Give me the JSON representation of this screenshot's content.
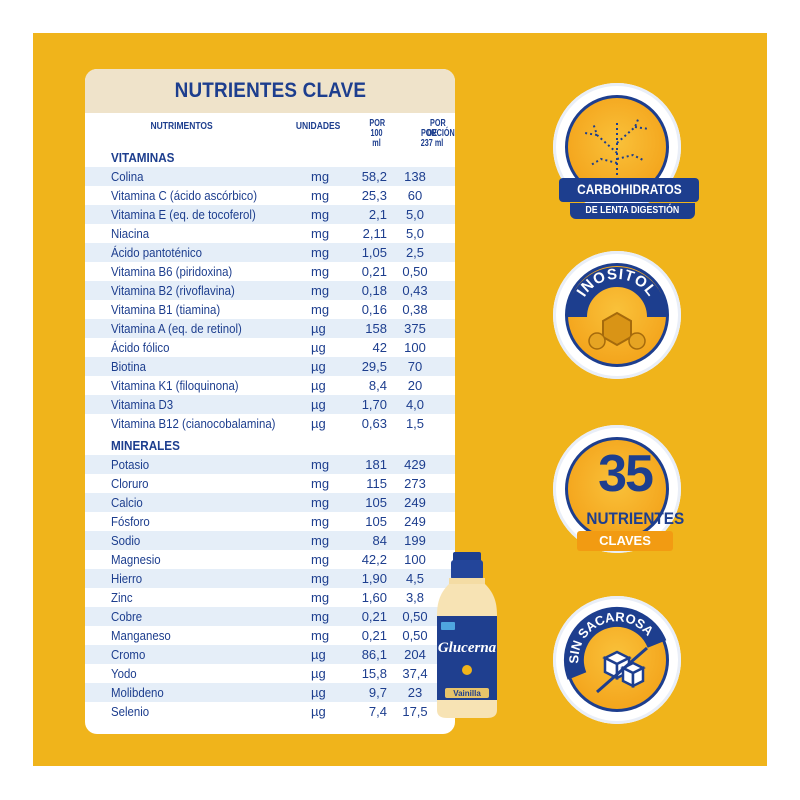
{
  "card": {
    "title": "NUTRIENTES CLAVE",
    "headers": {
      "nutrimentos": "NUTRIMENTOS",
      "unidades": "UNIDADES",
      "por100_line1": "POR",
      "por100_line2": "100 ml",
      "por237_line1": "POR PORCIÓN",
      "por237_line2": "DE 237 ml"
    },
    "vitaminas_label": "VITAMINAS",
    "vitaminas": [
      {
        "name": "Colina",
        "unit": "mg",
        "v100": "58,2",
        "v237": "138"
      },
      {
        "name": "Vitamina C (ácido ascórbico)",
        "unit": "mg",
        "v100": "25,3",
        "v237": "60"
      },
      {
        "name": "Vitamina E (eq. de tocoferol)",
        "unit": "mg",
        "v100": "2,1",
        "v237": "5,0"
      },
      {
        "name": "Niacina",
        "unit": "mg",
        "v100": "2,11",
        "v237": "5,0"
      },
      {
        "name": "Ácido pantoténico",
        "unit": "mg",
        "v100": "1,05",
        "v237": "2,5"
      },
      {
        "name": "Vitamina B6 (piridoxina)",
        "unit": "mg",
        "v100": "0,21",
        "v237": "0,50"
      },
      {
        "name": "Vitamina B2 (rivoflavina)",
        "unit": "mg",
        "v100": "0,18",
        "v237": "0,43"
      },
      {
        "name": "Vitamina B1 (tiamina)",
        "unit": "mg",
        "v100": "0,16",
        "v237": "0,38"
      },
      {
        "name": "Vitamina A (eq. de retinol)",
        "unit": "µg",
        "v100": "158",
        "v237": "375"
      },
      {
        "name": "Ácido fólico",
        "unit": "µg",
        "v100": "42",
        "v237": "100"
      },
      {
        "name": "Biotina",
        "unit": "µg",
        "v100": "29,5",
        "v237": "70"
      },
      {
        "name": "Vitamina K1 (filoquinona)",
        "unit": "µg",
        "v100": "8,4",
        "v237": "20"
      },
      {
        "name": "Vitamina D3",
        "unit": "µg",
        "v100": "1,70",
        "v237": "4,0"
      },
      {
        "name": "Vitamina B12 (cianocobalamina)",
        "unit": "µg",
        "v100": "0,63",
        "v237": "1,5"
      }
    ],
    "minerales_label": "MINERALES",
    "minerales": [
      {
        "name": "Potasio",
        "unit": "mg",
        "v100": "181",
        "v237": "429"
      },
      {
        "name": "Cloruro",
        "unit": "mg",
        "v100": "115",
        "v237": "273"
      },
      {
        "name": "Calcio",
        "unit": "mg",
        "v100": "105",
        "v237": "249"
      },
      {
        "name": "Fósforo",
        "unit": "mg",
        "v100": "105",
        "v237": "249"
      },
      {
        "name": "Sodio",
        "unit": "mg",
        "v100": "84",
        "v237": "199"
      },
      {
        "name": "Magnesio",
        "unit": "mg",
        "v100": "42,2",
        "v237": "100"
      },
      {
        "name": "Hierro",
        "unit": "mg",
        "v100": "1,90",
        "v237": "4,5"
      },
      {
        "name": "Zinc",
        "unit": "mg",
        "v100": "1,60",
        "v237": "3,8"
      },
      {
        "name": "Cobre",
        "unit": "mg",
        "v100": "0,21",
        "v237": "0,50"
      },
      {
        "name": "Manganeso",
        "unit": "mg",
        "v100": "0,21",
        "v237": "0,50"
      },
      {
        "name": "Cromo",
        "unit": "µg",
        "v100": "86,1",
        "v237": "204"
      },
      {
        "name": "Yodo",
        "unit": "µg",
        "v100": "15,8",
        "v237": "37,4"
      },
      {
        "name": "Molibdeno",
        "unit": "µg",
        "v100": "9,7",
        "v237": "23"
      },
      {
        "name": "Selenio",
        "unit": "µg",
        "v100": "7,4",
        "v237": "17,5"
      }
    ]
  },
  "product": {
    "brand": "Glucerna",
    "flavor": "Vainilla",
    "icon": "bottle-icon"
  },
  "badges": {
    "carbohidratos": {
      "title": "CARBOHIDRATOS",
      "subtitle": "DE LENTA DIGESTIÓN",
      "icon": "slow-carbs-icon"
    },
    "inositol": {
      "title": "INOSITOL",
      "icon": "molecule-icon"
    },
    "nutrientes": {
      "number": "35",
      "line1": "NUTRIENTES",
      "line2": "CLAVES"
    },
    "sin_sacarosa": {
      "title": "SIN SACAROSA",
      "icon": "no-sugar-cubes-icon"
    }
  },
  "colors": {
    "background": "#f0b41b",
    "navy": "#1d3e8e",
    "orange": "#f29b12",
    "stripe": "#e5eef8",
    "header": "#efe3ca"
  }
}
